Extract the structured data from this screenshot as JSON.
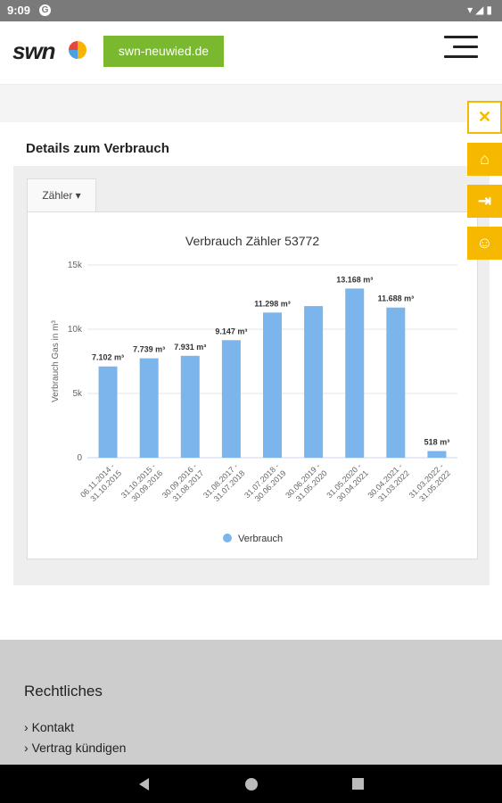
{
  "status": {
    "time": "9:09",
    "sys_icons": "▾◢▮"
  },
  "header": {
    "logo": "swn",
    "site_button": "swn-neuwied.de"
  },
  "page": {
    "details_title": "Details zum Verbrauch",
    "tab_label": "Zähler ▾"
  },
  "chart_data": {
    "type": "bar",
    "title": "Verbrauch Zähler 53772",
    "ylabel": "Verbrauch Gas in m³",
    "ylim": [
      0,
      15000
    ],
    "yticks": [
      0,
      5000,
      10000,
      15000
    ],
    "ytick_labels": [
      "0",
      "5k",
      "10k",
      "15k"
    ],
    "categories": [
      "06.11.2014 - 31.10.2015",
      "31.10.2015 - 30.09.2016",
      "30.09.2016 - 31.08.2017",
      "31.08.2017 - 31.07.2018",
      "31.07.2018 - 30.06.2019",
      "30.06.2019 - 31.05.2020",
      "31.05.2020 - 30.04.2021",
      "30.04.2021 - 31.03.2022",
      "31.03.2022 - 31.05.2022"
    ],
    "values": [
      7102,
      7739,
      7931,
      9147,
      11298,
      11800,
      13168,
      11688,
      518
    ],
    "data_labels": [
      "7.102 m³",
      "7.739 m³",
      "7.931 m³",
      "9.147 m³",
      "11.298 m³",
      "",
      "13.168 m³",
      "11.688 m³",
      "518 m³"
    ],
    "series_name": "Verbrauch",
    "color": "#7cb5ec",
    "legend_position": "bottom"
  },
  "footer": {
    "heading": "Rechtliches",
    "links": [
      "Kontakt",
      "Vertrag kündigen"
    ]
  }
}
